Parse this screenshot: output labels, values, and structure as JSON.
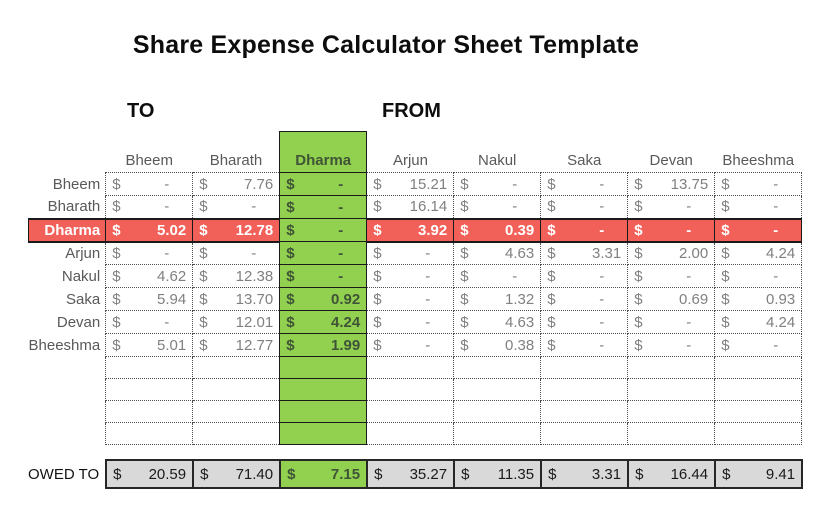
{
  "title": "Share Expense Calculator Sheet Template",
  "labels": {
    "to": "TO",
    "from": "FROM",
    "owed_to": "OWED TO",
    "currency": "$"
  },
  "columns": [
    "Bheem",
    "Bharath",
    "Dharma",
    "Arjun",
    "Nakul",
    "Saka",
    "Devan",
    "Bheeshma"
  ],
  "highlight_column": "Dharma",
  "highlight_row": "Dharma",
  "dash": "-",
  "rows": [
    {
      "label": "Bheem",
      "values": [
        "-",
        "7.76",
        "-",
        "15.21",
        "-",
        "-",
        "13.75",
        "-"
      ]
    },
    {
      "label": "Bharath",
      "values": [
        "-",
        "-",
        "-",
        "16.14",
        "-",
        "-",
        "-",
        "-"
      ]
    },
    {
      "label": "Dharma",
      "values": [
        "5.02",
        "12.78",
        "-",
        "3.92",
        "0.39",
        "-",
        "-",
        "-"
      ]
    },
    {
      "label": "Arjun",
      "values": [
        "-",
        "-",
        "-",
        "-",
        "4.63",
        "3.31",
        "2.00",
        "4.24"
      ]
    },
    {
      "label": "Nakul",
      "values": [
        "4.62",
        "12.38",
        "-",
        "-",
        "-",
        "-",
        "-",
        "-"
      ]
    },
    {
      "label": "Saka",
      "values": [
        "5.94",
        "13.70",
        "0.92",
        "-",
        "1.32",
        "-",
        "0.69",
        "0.93"
      ]
    },
    {
      "label": "Devan",
      "values": [
        "-",
        "12.01",
        "4.24",
        "-",
        "4.63",
        "-",
        "-",
        "4.24"
      ]
    },
    {
      "label": "Bheeshma",
      "values": [
        "5.01",
        "12.77",
        "1.99",
        "-",
        "0.38",
        "-",
        "-",
        "-"
      ]
    }
  ],
  "empty_row_count": 4,
  "owed_to": [
    "20.59",
    "71.40",
    "7.15",
    "35.27",
    "11.35",
    "3.31",
    "16.44",
    "9.41"
  ],
  "colors": {
    "green": "#92d050",
    "red": "#f2605a",
    "owed_gray": "#d9d9d9",
    "value_text": "#808080",
    "label_text": "#595959",
    "green_text": "#3f5436"
  }
}
